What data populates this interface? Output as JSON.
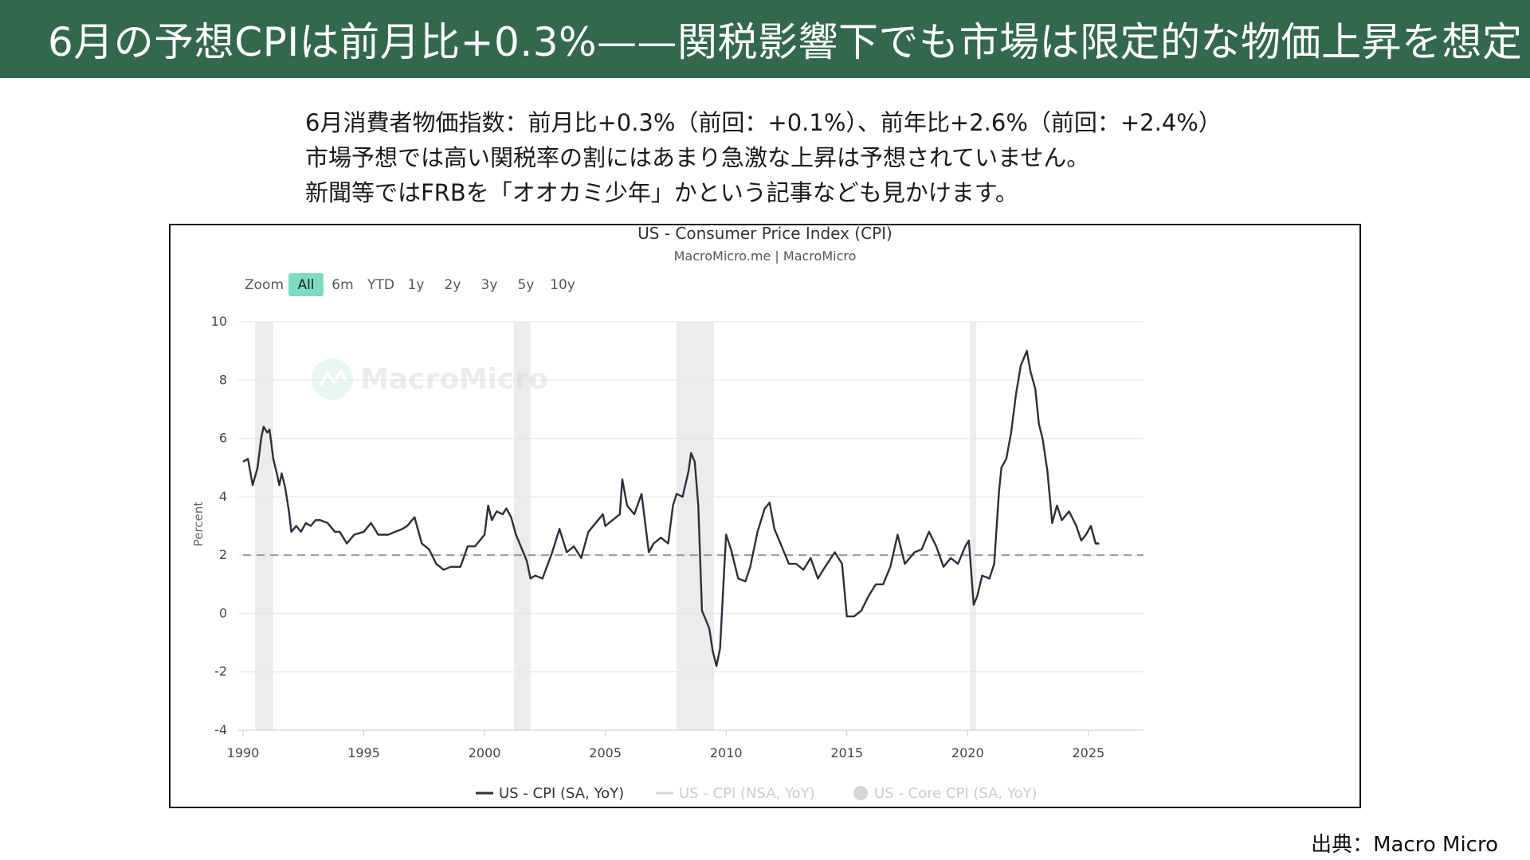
{
  "banner": {
    "title": "6月の予想CPIは前月比+0.3%——関税影響下でも市場は限定的な物価上昇を想定"
  },
  "intro": {
    "lines": [
      "6月消費者物価指数：前月比+0.3%（前回：+0.1%）、前年比+2.6%（前回：+2.4%）",
      "市場予想では高い関税率の割にはあまり急激な上昇は予想されていません。",
      "新聞等ではFRBを「オオカミ少年」かという記事なども見かけます。"
    ]
  },
  "source": "出典：Macro Micro",
  "chart_controls": {
    "zoom_label": "Zoom",
    "ranges": [
      "All",
      "6m",
      "YTD",
      "1y",
      "2y",
      "3y",
      "5y",
      "10y"
    ],
    "active": "All"
  },
  "watermark": "MacroMicro",
  "colors": {
    "banner": "#33684f",
    "line": "#2f2f3a",
    "active_range": "#7ddcc0",
    "recession": "#ececec",
    "target_line": "#999999"
  },
  "chart_data": {
    "type": "line",
    "title": "US - Consumer Price Index (CPI)",
    "subtitle": "MacroMicro.me | MacroMicro",
    "ylabel": "Percent",
    "xlabel": "",
    "ylim": [
      -4,
      10
    ],
    "xlim": [
      1990,
      2025.5
    ],
    "yticks": [
      10,
      8,
      6,
      4,
      2,
      0,
      -2,
      -4
    ],
    "xticks": [
      1990,
      1995,
      2000,
      2005,
      2010,
      2015,
      2020,
      2025
    ],
    "grid": true,
    "legend_position": "bottom",
    "legend": [
      {
        "name": "US - CPI (SA, YoY)",
        "active": true
      },
      {
        "name": "US - CPI (NSA, YoY)",
        "active": false
      },
      {
        "name": "US - Core CPI (SA, YoY)",
        "active": false
      }
    ],
    "reference_line": {
      "y": 2,
      "style": "dashed"
    },
    "recessions": [
      [
        1990.5,
        1991.25
      ],
      [
        2001.2,
        2001.9
      ],
      [
        2007.95,
        2009.5
      ],
      [
        2020.1,
        2020.35
      ]
    ],
    "series": [
      {
        "name": "US - CPI (SA, YoY)",
        "points": [
          [
            1990.0,
            5.2
          ],
          [
            1990.2,
            5.3
          ],
          [
            1990.4,
            4.4
          ],
          [
            1990.6,
            5.0
          ],
          [
            1990.75,
            6.0
          ],
          [
            1990.85,
            6.4
          ],
          [
            1991.0,
            6.2
          ],
          [
            1991.1,
            6.3
          ],
          [
            1991.25,
            5.3
          ],
          [
            1991.4,
            4.8
          ],
          [
            1991.5,
            4.4
          ],
          [
            1991.6,
            4.8
          ],
          [
            1991.75,
            4.3
          ],
          [
            1991.9,
            3.5
          ],
          [
            1992.0,
            2.8
          ],
          [
            1992.2,
            3.0
          ],
          [
            1992.4,
            2.8
          ],
          [
            1992.6,
            3.1
          ],
          [
            1992.8,
            3.0
          ],
          [
            1993.0,
            3.2
          ],
          [
            1993.2,
            3.2
          ],
          [
            1993.5,
            3.1
          ],
          [
            1993.8,
            2.8
          ],
          [
            1994.0,
            2.8
          ],
          [
            1994.3,
            2.4
          ],
          [
            1994.6,
            2.7
          ],
          [
            1995.0,
            2.8
          ],
          [
            1995.3,
            3.1
          ],
          [
            1995.6,
            2.7
          ],
          [
            1996.0,
            2.7
          ],
          [
            1996.3,
            2.8
          ],
          [
            1996.6,
            2.9
          ],
          [
            1996.8,
            3.0
          ],
          [
            1997.1,
            3.3
          ],
          [
            1997.4,
            2.4
          ],
          [
            1997.7,
            2.2
          ],
          [
            1998.0,
            1.7
          ],
          [
            1998.3,
            1.5
          ],
          [
            1998.6,
            1.6
          ],
          [
            1999.0,
            1.6
          ],
          [
            1999.3,
            2.3
          ],
          [
            1999.6,
            2.3
          ],
          [
            2000.0,
            2.7
          ],
          [
            2000.15,
            3.7
          ],
          [
            2000.3,
            3.2
          ],
          [
            2000.5,
            3.5
          ],
          [
            2000.75,
            3.4
          ],
          [
            2000.9,
            3.6
          ],
          [
            2001.1,
            3.3
          ],
          [
            2001.3,
            2.7
          ],
          [
            2001.5,
            2.3
          ],
          [
            2001.75,
            1.8
          ],
          [
            2001.9,
            1.2
          ],
          [
            2002.1,
            1.3
          ],
          [
            2002.4,
            1.2
          ],
          [
            2002.8,
            2.1
          ],
          [
            2003.1,
            2.9
          ],
          [
            2003.4,
            2.1
          ],
          [
            2003.7,
            2.3
          ],
          [
            2004.0,
            1.9
          ],
          [
            2004.3,
            2.8
          ],
          [
            2004.6,
            3.1
          ],
          [
            2004.9,
            3.4
          ],
          [
            2005.0,
            3.0
          ],
          [
            2005.3,
            3.2
          ],
          [
            2005.6,
            3.4
          ],
          [
            2005.7,
            4.6
          ],
          [
            2005.9,
            3.7
          ],
          [
            2006.2,
            3.4
          ],
          [
            2006.5,
            4.1
          ],
          [
            2006.8,
            2.1
          ],
          [
            2007.0,
            2.4
          ],
          [
            2007.3,
            2.6
          ],
          [
            2007.6,
            2.4
          ],
          [
            2007.8,
            3.7
          ],
          [
            2007.95,
            4.1
          ],
          [
            2008.2,
            4.0
          ],
          [
            2008.45,
            4.9
          ],
          [
            2008.55,
            5.5
          ],
          [
            2008.7,
            5.2
          ],
          [
            2008.85,
            3.7
          ],
          [
            2009.0,
            0.1
          ],
          [
            2009.3,
            -0.5
          ],
          [
            2009.45,
            -1.3
          ],
          [
            2009.6,
            -1.8
          ],
          [
            2009.75,
            -1.2
          ],
          [
            2009.9,
            1.2
          ],
          [
            2010.0,
            2.7
          ],
          [
            2010.2,
            2.2
          ],
          [
            2010.5,
            1.2
          ],
          [
            2010.8,
            1.1
          ],
          [
            2011.0,
            1.6
          ],
          [
            2011.3,
            2.8
          ],
          [
            2011.6,
            3.6
          ],
          [
            2011.8,
            3.8
          ],
          [
            2012.0,
            2.9
          ],
          [
            2012.3,
            2.3
          ],
          [
            2012.6,
            1.7
          ],
          [
            2012.9,
            1.7
          ],
          [
            2013.2,
            1.5
          ],
          [
            2013.5,
            1.9
          ],
          [
            2013.8,
            1.2
          ],
          [
            2014.1,
            1.6
          ],
          [
            2014.5,
            2.1
          ],
          [
            2014.8,
            1.7
          ],
          [
            2015.0,
            -0.1
          ],
          [
            2015.3,
            -0.1
          ],
          [
            2015.6,
            0.1
          ],
          [
            2015.9,
            0.6
          ],
          [
            2016.2,
            1.0
          ],
          [
            2016.5,
            1.0
          ],
          [
            2016.8,
            1.6
          ],
          [
            2017.1,
            2.7
          ],
          [
            2017.4,
            1.7
          ],
          [
            2017.8,
            2.1
          ],
          [
            2018.1,
            2.2
          ],
          [
            2018.4,
            2.8
          ],
          [
            2018.7,
            2.3
          ],
          [
            2019.0,
            1.6
          ],
          [
            2019.3,
            1.9
          ],
          [
            2019.6,
            1.7
          ],
          [
            2019.9,
            2.3
          ],
          [
            2020.05,
            2.5
          ],
          [
            2020.25,
            0.3
          ],
          [
            2020.4,
            0.6
          ],
          [
            2020.6,
            1.3
          ],
          [
            2020.9,
            1.2
          ],
          [
            2021.1,
            1.7
          ],
          [
            2021.3,
            4.2
          ],
          [
            2021.4,
            5.0
          ],
          [
            2021.6,
            5.3
          ],
          [
            2021.8,
            6.2
          ],
          [
            2022.0,
            7.5
          ],
          [
            2022.2,
            8.5
          ],
          [
            2022.45,
            9.0
          ],
          [
            2022.6,
            8.3
          ],
          [
            2022.8,
            7.7
          ],
          [
            2022.95,
            6.5
          ],
          [
            2023.1,
            6.0
          ],
          [
            2023.3,
            4.9
          ],
          [
            2023.5,
            3.1
          ],
          [
            2023.7,
            3.7
          ],
          [
            2023.9,
            3.2
          ],
          [
            2024.2,
            3.5
          ],
          [
            2024.5,
            3.0
          ],
          [
            2024.7,
            2.5
          ],
          [
            2024.9,
            2.7
          ],
          [
            2025.1,
            3.0
          ],
          [
            2025.3,
            2.4
          ],
          [
            2025.45,
            2.4
          ]
        ]
      }
    ]
  }
}
